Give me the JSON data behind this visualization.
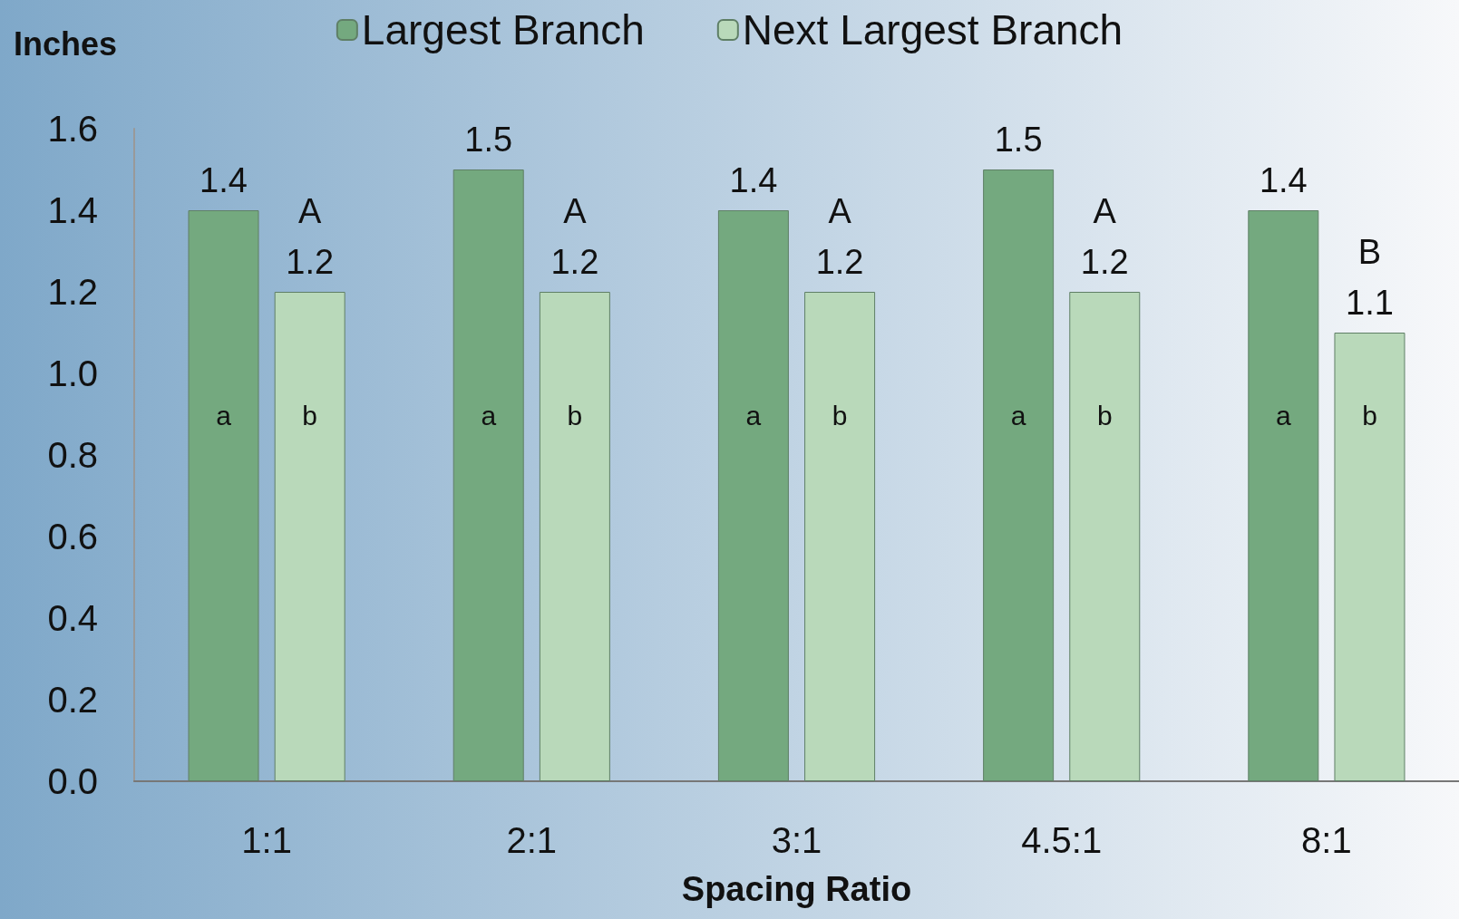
{
  "chart_data": {
    "type": "bar",
    "ylabel": "Inches",
    "xlabel": "Spacing Ratio",
    "categories": [
      "1:1",
      "2:1",
      "3:1",
      "4.5:1",
      "8:1"
    ],
    "series": [
      {
        "name": "Largest Branch",
        "color": "#74a97f",
        "values": [
          1.4,
          1.5,
          1.4,
          1.5,
          1.4
        ],
        "value_labels": [
          "1.4",
          "1.5",
          "1.4",
          "1.5",
          "1.4"
        ]
      },
      {
        "name": "Next Largest Branch",
        "color": "#b9d9ba",
        "values": [
          1.2,
          1.2,
          1.2,
          1.2,
          1.1
        ],
        "value_labels": [
          "A\n1.2",
          "A\n1.2",
          "A\n1.2",
          "A\n1.2",
          "B\n1.1"
        ]
      }
    ],
    "annotations": [
      "a",
      "b",
      "a",
      "b",
      "a",
      "b",
      "a",
      "b",
      "a",
      "b"
    ],
    "ylim": [
      0,
      1.6
    ],
    "yticks": [
      {
        "value": 0,
        "label": "0.0"
      },
      0.2,
      0.4,
      0.6,
      0.8,
      {
        "value": 1,
        "label": "1.0"
      },
      1.2,
      1.4,
      1.6
    ],
    "grid": false,
    "legend": "top"
  }
}
